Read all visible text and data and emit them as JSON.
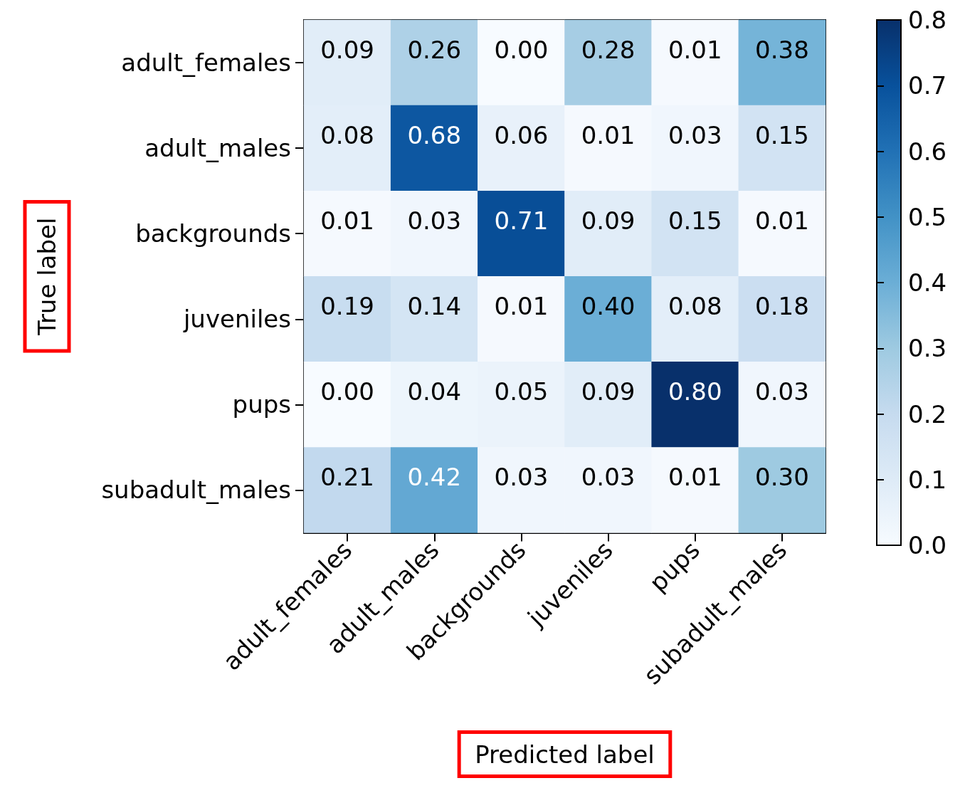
{
  "chart_data": {
    "type": "heatmap",
    "xlabel": "Predicted label",
    "ylabel": "True label",
    "categories": [
      "adult_females",
      "adult_males",
      "backgrounds",
      "juveniles",
      "pups",
      "subadult_males"
    ],
    "y_categories": [
      "adult_females",
      "adult_males",
      "backgrounds",
      "juveniles",
      "pups",
      "subadult_males"
    ],
    "cells": [
      [
        0.09,
        0.26,
        0.0,
        0.28,
        0.01,
        0.38
      ],
      [
        0.08,
        0.68,
        0.06,
        0.01,
        0.03,
        0.15
      ],
      [
        0.01,
        0.03,
        0.71,
        0.09,
        0.15,
        0.01
      ],
      [
        0.19,
        0.14,
        0.01,
        0.4,
        0.08,
        0.18
      ],
      [
        0.0,
        0.04,
        0.05,
        0.09,
        0.8,
        0.03
      ],
      [
        0.21,
        0.42,
        0.03,
        0.03,
        0.01,
        0.3
      ]
    ],
    "cell_labels": [
      [
        "0.09",
        "0.26",
        "0.00",
        "0.28",
        "0.01",
        "0.38"
      ],
      [
        "0.08",
        "0.68",
        "0.06",
        "0.01",
        "0.03",
        "0.15"
      ],
      [
        "0.01",
        "0.03",
        "0.71",
        "0.09",
        "0.15",
        "0.01"
      ],
      [
        "0.19",
        "0.14",
        "0.01",
        "0.40",
        "0.08",
        "0.18"
      ],
      [
        "0.00",
        "0.04",
        "0.05",
        "0.09",
        "0.80",
        "0.03"
      ],
      [
        "0.21",
        "0.42",
        "0.03",
        "0.03",
        "0.01",
        "0.30"
      ]
    ],
    "clim": [
      0,
      0.8
    ],
    "cticks": [
      {
        "value": 0,
        "label": "0.0"
      },
      {
        "value": 0.1,
        "label": "0.1"
      },
      {
        "value": 0.2,
        "label": "0.2"
      },
      {
        "value": 0.3,
        "label": "0.3"
      },
      {
        "value": 0.4,
        "label": "0.4"
      },
      {
        "value": 0.5,
        "label": "0.5"
      },
      {
        "value": 0.6,
        "label": "0.6"
      },
      {
        "value": 0.7,
        "label": "0.7"
      },
      {
        "value": 0.8,
        "label": "0.8"
      }
    ]
  }
}
